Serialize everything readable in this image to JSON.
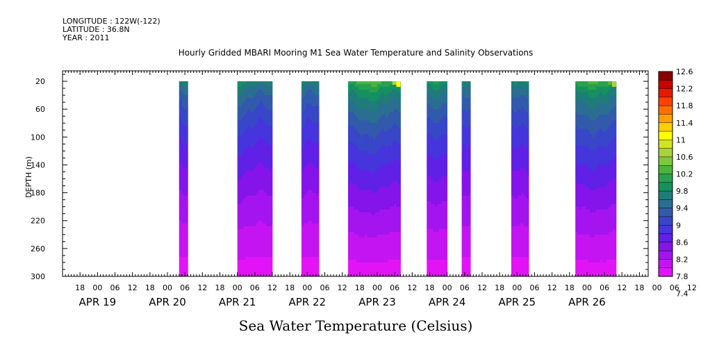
{
  "header": {
    "longitude": "LONGITUDE : 122W(-122)",
    "latitude": "LATITUDE : 36.8N",
    "year": "YEAR : 2011"
  },
  "chart_data": {
    "type": "heatmap",
    "title": "Hourly Gridded MBARI Mooring M1 Sea Water Temperature and Salinity Observations",
    "ylabel": "DEPTH (m)",
    "variable_label": "Sea Water Temperature (Celsius)",
    "x_axis": {
      "start": "APR 18 12:00",
      "end": "APR 26 21:00",
      "hour_tick_labels": [
        "18",
        "00",
        "06",
        "12",
        "18",
        "00",
        "06",
        "12",
        "18",
        "00",
        "06",
        "12",
        "18",
        "00",
        "06",
        "12",
        "18",
        "00",
        "06",
        "12",
        "18",
        "00",
        "06",
        "12",
        "18",
        "00",
        "06",
        "12",
        "18",
        "00",
        "06",
        "12",
        "18",
        "00",
        "06",
        "12"
      ],
      "date_labels": [
        "APR 19",
        "APR 20",
        "APR 21",
        "APR 22",
        "APR 23",
        "APR 24",
        "APR 25",
        "APR 26"
      ]
    },
    "y_axis": {
      "range": [
        300,
        5
      ],
      "tick_labels": [
        "20",
        "60",
        "100",
        "140",
        "180",
        "220",
        "260",
        "300"
      ]
    },
    "data_blocks": [
      {
        "start": "APR 20 04:00",
        "end": "APR 20 07:00",
        "surface_temp": 9.5
      },
      {
        "start": "APR 21 00:00",
        "end": "APR 21 12:00",
        "surface_temp": 9.7
      },
      {
        "start": "APR 21 22:00",
        "end": "APR 22 04:00",
        "surface_temp": 9.7
      },
      {
        "start": "APR 22 14:00",
        "end": "APR 23 08:00",
        "surface_temp": 10.2,
        "hotspot_temp": 11.0
      },
      {
        "start": "APR 23 17:00",
        "end": "APR 24 00:00",
        "surface_temp": 9.8
      },
      {
        "start": "APR 24 05:00",
        "end": "APR 24 08:00",
        "surface_temp": 9.6
      },
      {
        "start": "APR 24 22:00",
        "end": "APR 25 04:00",
        "surface_temp": 9.8
      },
      {
        "start": "APR 25 20:00",
        "end": "APR 26 10:00",
        "surface_temp": 10.1,
        "hotspot_temp": 10.5
      }
    ],
    "colorbar": {
      "levels": [
        "12.6",
        "12.2",
        "11.8",
        "11.4",
        "11",
        "10.6",
        "10.2",
        "9.8",
        "9.4",
        "9",
        "8.6",
        "8.2",
        "7.8",
        "7.4"
      ],
      "colors": [
        "#8b0000",
        "#c80000",
        "#e61a00",
        "#ff4000",
        "#ff6f00",
        "#ff9f00",
        "#ffcf00",
        "#ffff00",
        "#d2e61e",
        "#aad23c",
        "#7dc83c",
        "#4cb43c",
        "#28a050",
        "#14915f",
        "#1e7d78",
        "#2a6e91",
        "#325aaa",
        "#3846c8",
        "#4634dc",
        "#6020e6",
        "#8414ea",
        "#a414ee",
        "#c414f2",
        "#e214f6"
      ]
    }
  }
}
